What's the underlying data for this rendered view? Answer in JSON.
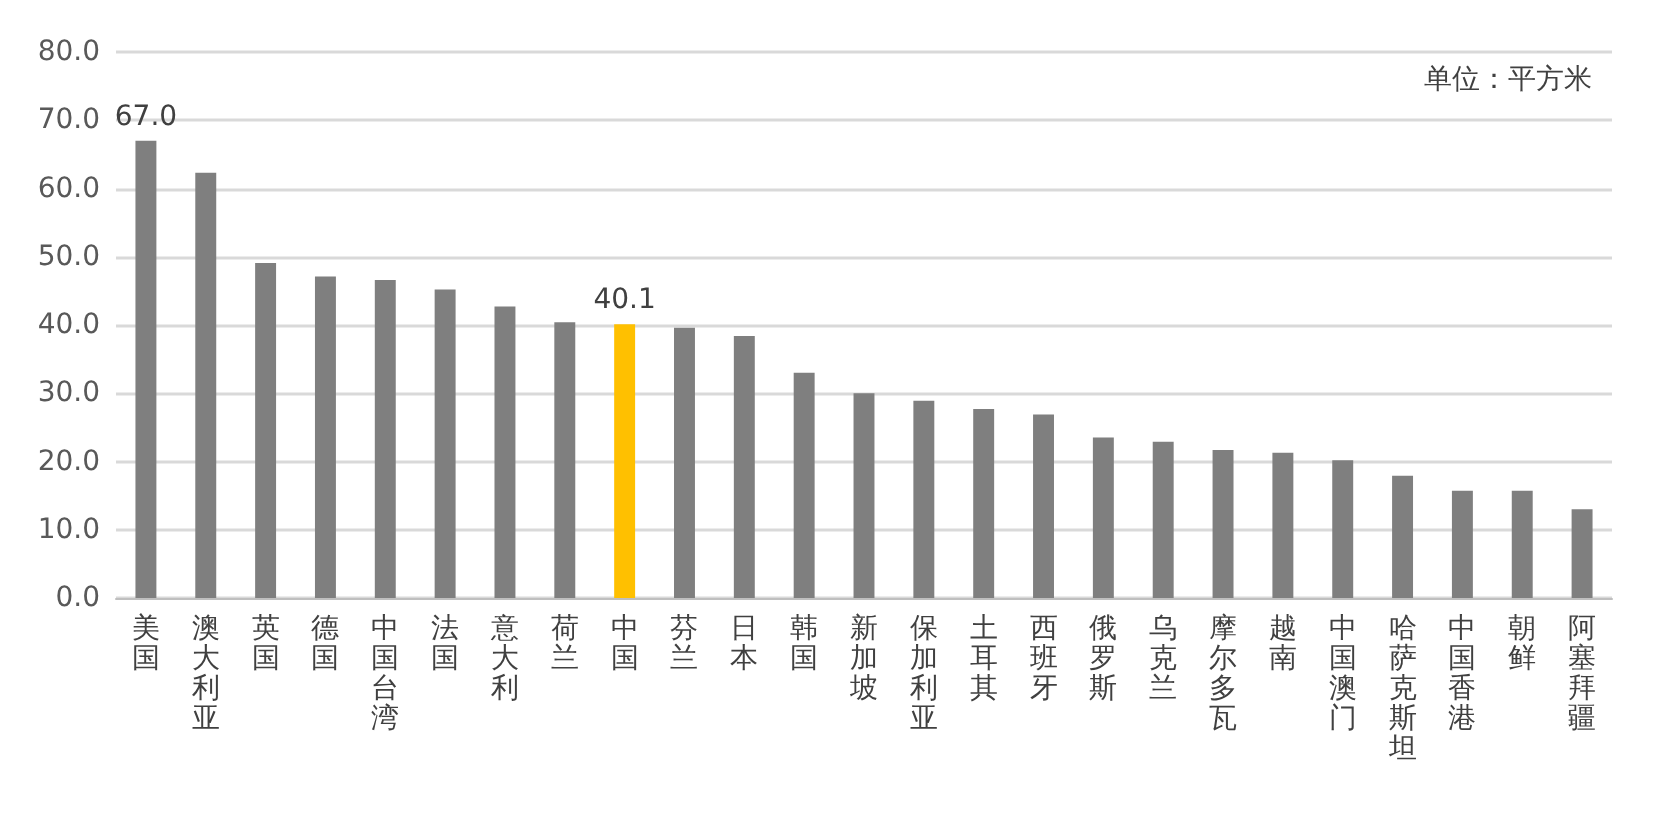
{
  "chart_data": {
    "type": "bar",
    "categories": [
      "美国",
      "澳大利亚",
      "英国",
      "德国",
      "中国台湾",
      "法国",
      "意大利",
      "荷兰",
      "中国",
      "芬兰",
      "日本",
      "韩国",
      "新加坡",
      "保加利亚",
      "土耳其",
      "西班牙",
      "俄罗斯",
      "乌克兰",
      "摩尔多瓦",
      "越南",
      "中国澳门",
      "哈萨克斯坦",
      "中国香港",
      "朝鲜",
      "阿塞拜疆"
    ],
    "values": [
      67.0,
      62.3,
      49.1,
      47.1,
      46.6,
      45.2,
      42.7,
      40.4,
      40.1,
      39.6,
      38.4,
      33.0,
      30.0,
      28.9,
      27.7,
      26.9,
      23.5,
      22.9,
      21.7,
      21.3,
      20.2,
      17.9,
      15.7,
      15.7,
      13.0
    ],
    "value_labels": [
      "67.0",
      null,
      null,
      null,
      null,
      null,
      null,
      null,
      "40.1",
      null,
      null,
      null,
      null,
      null,
      null,
      null,
      null,
      null,
      null,
      null,
      null,
      null,
      null,
      null,
      null
    ],
    "colors": [
      "#7f7f7f",
      "#7f7f7f",
      "#7f7f7f",
      "#7f7f7f",
      "#7f7f7f",
      "#7f7f7f",
      "#7f7f7f",
      "#7f7f7f",
      "#ffc000",
      "#7f7f7f",
      "#7f7f7f",
      "#7f7f7f",
      "#7f7f7f",
      "#7f7f7f",
      "#7f7f7f",
      "#7f7f7f",
      "#7f7f7f",
      "#7f7f7f",
      "#7f7f7f",
      "#7f7f7f",
      "#7f7f7f",
      "#7f7f7f",
      "#7f7f7f",
      "#7f7f7f",
      "#7f7f7f"
    ],
    "ylim": [
      0,
      80
    ],
    "yticks": [
      {
        "value": 0,
        "label": "0.0"
      },
      {
        "value": 10,
        "label": "10.0"
      },
      {
        "value": 20,
        "label": "20.0"
      },
      {
        "value": 30,
        "label": "30.0"
      },
      {
        "value": 40,
        "label": "40.0"
      },
      {
        "value": 50,
        "label": "50.0"
      },
      {
        "value": 60,
        "label": "60.0"
      },
      {
        "value": 70,
        "label": "70.0"
      },
      {
        "value": 80,
        "label": "80.0"
      }
    ],
    "grid": "y",
    "annotations": [
      "单位：平方米"
    ]
  }
}
